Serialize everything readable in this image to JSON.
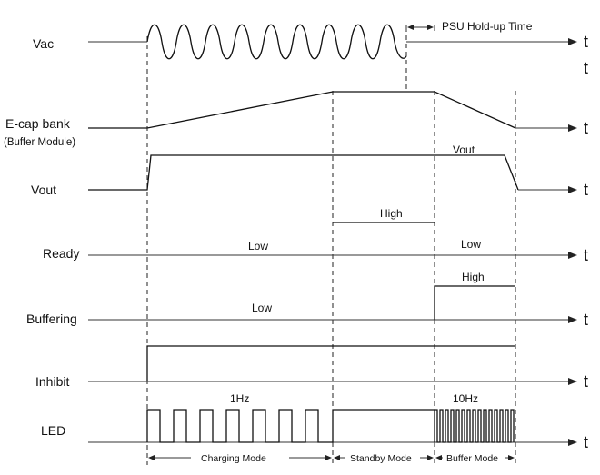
{
  "signals": {
    "vac": "Vac",
    "ecap_line1": "E-cap bank",
    "ecap_line2": "(Buffer Module)",
    "vout": "Vout",
    "ready": "Ready",
    "buffering": "Buffering",
    "inhibit": "Inhibit",
    "led": "LED"
  },
  "axis_symbol": "t",
  "annotations": {
    "psu_hold_up": "PSU Hold-up Time",
    "vout_level": "Vout",
    "ready_low_1": "Low",
    "ready_high": "High",
    "ready_low_2": "Low",
    "buffering_high": "High",
    "buffering_low": "Low",
    "led_freq_1": "1Hz",
    "led_freq_2": "10Hz"
  },
  "modes": {
    "charging": "Charging Mode",
    "standby": "Standby Mode",
    "buffer": "Buffer Mode"
  }
}
